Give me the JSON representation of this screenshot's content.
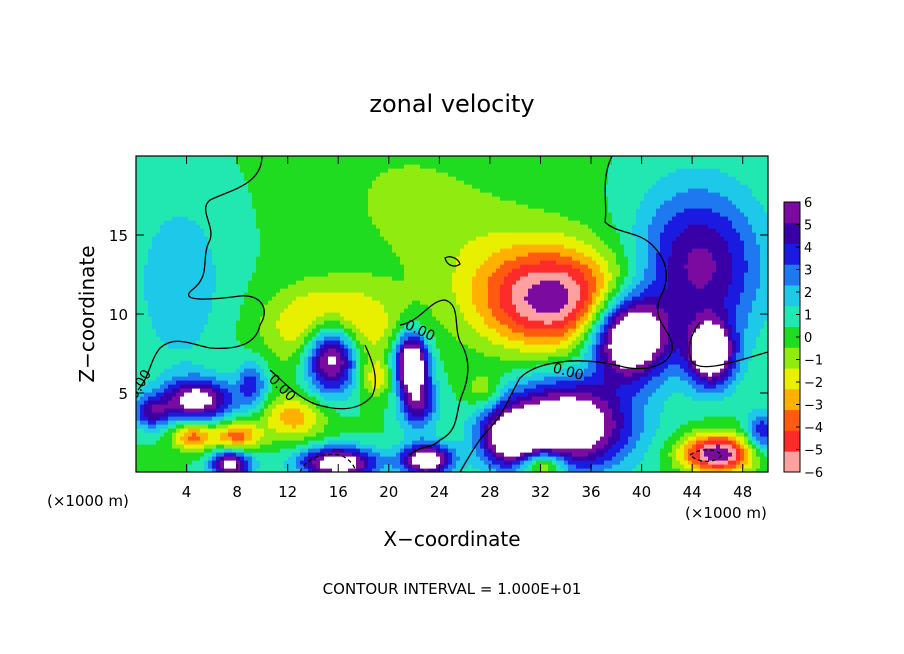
{
  "chart_data": {
    "type": "heatmap",
    "title": "zonal velocity",
    "xlabel": "X−coordinate",
    "ylabel": "Z−coordinate",
    "x_unit_left": "(×1000 m)",
    "x_unit_right": "(×1000 m)",
    "xlim": [
      0,
      50
    ],
    "ylim": [
      0,
      20
    ],
    "x_ticks": [
      4,
      8,
      12,
      16,
      20,
      24,
      28,
      32,
      36,
      40,
      44,
      48
    ],
    "y_ticks": [
      5,
      10,
      15
    ],
    "colorbar": {
      "ticks": [
        6,
        5,
        4,
        3,
        2,
        1,
        0,
        -1,
        -2,
        -3,
        -4,
        -5,
        -6
      ],
      "tick_labels": [
        "6",
        "5",
        "4",
        "3",
        "2",
        "1",
        "0",
        "−1",
        "−2",
        "−3",
        "−4",
        "−5",
        "−6"
      ],
      "range": [
        -6,
        6
      ],
      "colors": [
        "#7a0aa0",
        "#3a00a8",
        "#1a1ae0",
        "#1e78f0",
        "#1ec8e8",
        "#20e8b0",
        "#20dc20",
        "#90ec10",
        "#e8f000",
        "#ffb000",
        "#ff5a10",
        "#ff2a2a",
        "#ffa0a0"
      ]
    },
    "background_value": 0.4,
    "features": [
      {
        "x": 4.8,
        "z": 4.6,
        "amp": 7,
        "sx": 2.8,
        "sz": 1.3
      },
      {
        "x": 1.2,
        "z": 3.8,
        "amp": 4,
        "sx": 1.5,
        "sz": 1.0
      },
      {
        "x": 4.5,
        "z": 2.3,
        "amp": -4.5,
        "sx": 1.6,
        "sz": 0.9
      },
      {
        "x": 8.0,
        "z": 2.3,
        "amp": -4.5,
        "sx": 1.8,
        "sz": 0.9
      },
      {
        "x": 7.5,
        "z": 0.5,
        "amp": 7,
        "sx": 1.6,
        "sz": 0.9
      },
      {
        "x": 9.2,
        "z": 5.6,
        "amp": 3.5,
        "sx": 1.2,
        "sz": 1.5
      },
      {
        "x": 15.5,
        "z": 7.5,
        "amp": 9,
        "sx": 2.1,
        "sz": 2.3
      },
      {
        "x": 15.5,
        "z": 9.2,
        "amp": -5,
        "sx": 4.5,
        "sz": 2.5
      },
      {
        "x": 12.5,
        "z": 3.5,
        "amp": -3.5,
        "sx": 2.5,
        "sz": 1.4
      },
      {
        "x": 16.0,
        "z": 0.6,
        "amp": 8,
        "sx": 3.0,
        "sz": 1.0
      },
      {
        "x": 21.8,
        "z": 7.0,
        "amp": 9,
        "sx": 1.3,
        "sz": 1.8
      },
      {
        "x": 22.3,
        "z": 4.4,
        "amp": 5,
        "sx": 1.4,
        "sz": 1.7
      },
      {
        "x": 23.0,
        "z": 0.8,
        "amp": 8,
        "sx": 2.0,
        "sz": 1.0
      },
      {
        "x": 19.0,
        "z": 6.0,
        "amp": -2.5,
        "sx": 1.3,
        "sz": 1.2
      },
      {
        "x": 33.0,
        "z": 11.0,
        "amp": -7.5,
        "sx": 6.0,
        "sz": 3.2
      },
      {
        "x": 39.0,
        "z": 8.6,
        "amp": 10,
        "sx": 3.0,
        "sz": 2.6
      },
      {
        "x": 34.0,
        "z": 3.0,
        "amp": 9,
        "sx": 5.0,
        "sz": 2.8
      },
      {
        "x": 29.5,
        "z": 2.2,
        "amp": 6,
        "sx": 2.2,
        "sz": 1.8
      },
      {
        "x": 32.2,
        "z": 0.5,
        "amp": -5,
        "sx": 1.8,
        "sz": 0.9
      },
      {
        "x": 27.5,
        "z": 5.2,
        "amp": -2,
        "sx": 1.5,
        "sz": 1.2
      },
      {
        "x": 44.5,
        "z": 13.0,
        "amp": 5.5,
        "sx": 5.0,
        "sz": 5.0
      },
      {
        "x": 45.5,
        "z": 7.5,
        "amp": 8,
        "sx": 1.8,
        "sz": 2.0
      },
      {
        "x": 46.0,
        "z": 1.2,
        "amp": -8,
        "sx": 2.8,
        "sz": 1.2
      },
      {
        "x": 49.5,
        "z": 2.5,
        "amp": 4,
        "sx": 1.2,
        "sz": 1.4
      },
      {
        "x": 3.5,
        "z": 12.0,
        "amp": 1.8,
        "sx": 4.0,
        "sz": 6.0
      },
      {
        "x": 26.0,
        "z": 15.0,
        "amp": -1.2,
        "sx": 8.0,
        "sz": 4.0
      },
      {
        "x": 21.0,
        "z": 18.0,
        "amp": -0.8,
        "sx": 5.0,
        "sz": 3.0
      }
    ]
  },
  "footer": {
    "contour_interval": "CONTOUR INTERVAL = 1.000E+01"
  },
  "contour_labels": [
    "0.00",
    "0.00",
    "0.00",
    "0.00",
    "0.00"
  ]
}
